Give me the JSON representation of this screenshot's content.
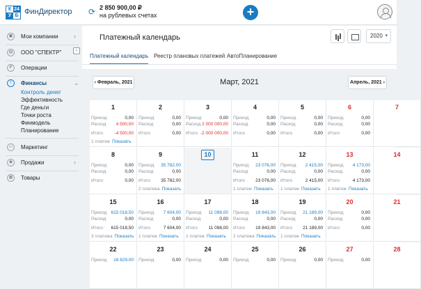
{
  "header": {
    "logo": {
      "a": "К",
      "b": "24",
      "c": "У",
      "d": "Б"
    },
    "brand": "ФинДиректор",
    "balance_amount": "2 850 900,00 ₽",
    "balance_label": "на рублевых счетах",
    "add_label": "+"
  },
  "sidebar": {
    "items": [
      {
        "label": "Мои компании",
        "icon": "briefcase-icon"
      },
      {
        "label": "ООО \"СПЕКТР\"",
        "icon": "building-icon"
      },
      {
        "label": "Операции",
        "icon": "ruble-icon"
      },
      {
        "label": "Финансы",
        "icon": "chart-line-icon"
      },
      {
        "label": "Маркетинг",
        "icon": "monitor-icon"
      },
      {
        "label": "Продажи",
        "icon": "pin-icon"
      },
      {
        "label": "Товары",
        "icon": "box-icon"
      }
    ],
    "finance_sub": [
      "Контроль денег",
      "Эффективность",
      "Где деньги",
      "Точки роста",
      "Финмодель",
      "Планирование"
    ]
  },
  "main": {
    "title": "Платежный календарь",
    "year": "2020",
    "tabs": [
      "Платежный календарь",
      "Реестр плановых платежей",
      "АвтоПланирование"
    ],
    "prev_month": "‹  Февраль, 2021",
    "next_month": "Апрель, 2021  ›",
    "month_title": "Март, 2021"
  },
  "calendar": {
    "labels": {
      "income": "Приход",
      "expense": "Расход",
      "total": "Итого",
      "show": "Показать"
    },
    "weeks": [
      [
        {
          "day": "1",
          "inc": "0,00",
          "exp": "4 500,00",
          "tot": "-4 500,00",
          "foot": "1 платеж",
          "expColor": "red",
          "totColor": "red"
        },
        {
          "day": "2",
          "inc": "0,00",
          "exp": "0,00",
          "tot": "0,00",
          "foot": ""
        },
        {
          "day": "3",
          "inc": "0,00",
          "exp": "2 000 000,00",
          "tot": "-2 000 000,00",
          "foot": "",
          "expColor": "red",
          "totColor": "red"
        },
        {
          "day": "4",
          "inc": "0,00",
          "exp": "0,00",
          "tot": "0,00",
          "foot": ""
        },
        {
          "day": "5",
          "inc": "0,00",
          "exp": "0,00",
          "tot": "0,00",
          "foot": ""
        },
        {
          "day": "6",
          "inc": "0,00",
          "exp": "0,00",
          "tot": "0,00",
          "foot": "",
          "weekend": true
        },
        {
          "day": "7",
          "inc": "",
          "exp": "",
          "tot": "",
          "foot": "",
          "weekend": true
        }
      ],
      [
        {
          "day": "8",
          "inc": "0,00",
          "exp": "0,00",
          "tot": "0,00",
          "foot": ""
        },
        {
          "day": "9",
          "inc": "35 782,00",
          "exp": "0,00",
          "tot": "35 782,00",
          "foot": "2 платежа",
          "incColor": "blue"
        },
        {
          "day": "10",
          "inc": "",
          "exp": "",
          "tot": "",
          "foot": "",
          "today": true
        },
        {
          "day": "11",
          "inc": "23 076,00",
          "exp": "0,00",
          "tot": "23 076,00",
          "foot": "1 платеж",
          "incColor": "blue"
        },
        {
          "day": "12",
          "inc": "2 415,00",
          "exp": "0,00",
          "tot": "2 415,00",
          "foot": "1 платеж",
          "incColor": "blue"
        },
        {
          "day": "13",
          "inc": "4 173,00",
          "exp": "0,00",
          "tot": "4 173,00",
          "foot": "1 платеж",
          "incColor": "blue",
          "weekend": true
        },
        {
          "day": "14",
          "inc": "",
          "exp": "",
          "tot": "",
          "foot": "",
          "weekend": true
        }
      ],
      [
        {
          "day": "15",
          "inc": "615 018,50",
          "exp": "0,00",
          "tot": "615 018,50",
          "foot": "3 платежа",
          "incColor": "blue"
        },
        {
          "day": "16",
          "inc": "7 604,00",
          "exp": "0,00",
          "tot": "7 604,00",
          "foot": "1 платеж",
          "incColor": "blue"
        },
        {
          "day": "17",
          "inc": "11 098,00",
          "exp": "0,00",
          "tot": "11 098,00",
          "foot": "1 платеж",
          "incColor": "blue"
        },
        {
          "day": "18",
          "inc": "19 843,00",
          "exp": "0,00",
          "tot": "19 843,00",
          "foot": "2 платежа",
          "incColor": "blue"
        },
        {
          "day": "19",
          "inc": "21 189,00",
          "exp": "0,00",
          "tot": "21 189,00",
          "foot": "1 платеж",
          "incColor": "blue"
        },
        {
          "day": "20",
          "inc": "0,00",
          "exp": "0,00",
          "tot": "0,00",
          "foot": "",
          "weekend": true
        },
        {
          "day": "21",
          "inc": "",
          "exp": "",
          "tot": "",
          "foot": "",
          "weekend": true
        }
      ],
      [
        {
          "day": "22",
          "inc": "16 829,00",
          "exp": "",
          "tot": "",
          "foot": "",
          "incColor": "blue"
        },
        {
          "day": "23",
          "inc": "0,00",
          "exp": "",
          "tot": "",
          "foot": ""
        },
        {
          "day": "24",
          "inc": "0,00",
          "exp": "",
          "tot": "",
          "foot": ""
        },
        {
          "day": "25",
          "inc": "0,00",
          "exp": "",
          "tot": "",
          "foot": ""
        },
        {
          "day": "26",
          "inc": "0,00",
          "exp": "",
          "tot": "",
          "foot": ""
        },
        {
          "day": "27",
          "inc": "0,00",
          "exp": "",
          "tot": "",
          "foot": "",
          "weekend": true
        },
        {
          "day": "28",
          "inc": "",
          "exp": "",
          "tot": "",
          "foot": "",
          "weekend": true
        }
      ]
    ]
  }
}
